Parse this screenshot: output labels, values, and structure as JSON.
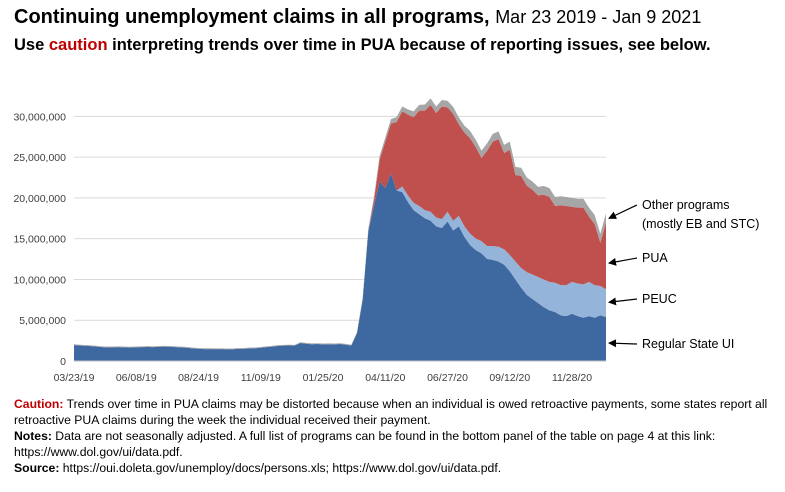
{
  "header": {
    "title": "Continuing unemployment claims in all programs,",
    "title_dates": "Mar 23 2019 - Jan 9 2021",
    "subtitle_pre": "Use ",
    "subtitle_caution": "caution",
    "subtitle_post": " interpreting trends over time in PUA because of reporting issues, see below."
  },
  "notes": {
    "caution_label": "Caution:",
    "caution_text": " Trends over time in PUA claims may be distorted because when an individual is owed retroactive payments, some states report all retroactive PUA claims during the week the individual received their payment.",
    "notes_label": "Notes:",
    "notes_text": "  Data are not seasonally adjusted. A full list of programs can be found in the bottom panel of the table on page 4 at this link: https://www.dol.gov/ui/data.pdf.",
    "source_label": "Source:",
    "source_text": "  https://oui.doleta.gov/unemploy/docs/persons.xls; https://www.dol.gov/ui/data.pdf."
  },
  "chart_data": {
    "type": "area",
    "stacked": true,
    "x_start": "2019-03-23",
    "x_step_days": 7,
    "x_count": 95,
    "x_tick_labels": [
      "03/23/19",
      "06/08/19",
      "08/24/19",
      "11/09/19",
      "01/25/20",
      "04/11/20",
      "06/27/20",
      "09/12/20",
      "11/28/20"
    ],
    "y_tick_labels": [
      "0",
      "5,000,000",
      "10,000,000",
      "15,000,000",
      "20,000,000",
      "25,000,000",
      "30,000,000"
    ],
    "ylim": [
      0,
      32000000
    ],
    "grid": true,
    "series": [
      {
        "name": "Regular State UI",
        "color": "#3d68a0",
        "values": [
          1950000,
          1900000,
          1860000,
          1820000,
          1760000,
          1700000,
          1660000,
          1680000,
          1700000,
          1660000,
          1640000,
          1680000,
          1700000,
          1720000,
          1700000,
          1740000,
          1760000,
          1740000,
          1700000,
          1660000,
          1620000,
          1540000,
          1500000,
          1460000,
          1460000,
          1450000,
          1450000,
          1440000,
          1440000,
          1480000,
          1500000,
          1540000,
          1560000,
          1620000,
          1700000,
          1760000,
          1840000,
          1880000,
          1900000,
          1880000,
          2200000,
          2120000,
          2060000,
          2080000,
          2040000,
          2060000,
          2040000,
          2080000,
          2000000,
          1900000,
          3400000,
          7500000,
          15900000,
          19000000,
          22000000,
          21200000,
          23000000,
          20900000,
          20700000,
          19500000,
          18500000,
          18000000,
          17500000,
          17200000,
          16500000,
          16300000,
          17100000,
          16000000,
          16500000,
          15200000,
          14200000,
          13600000,
          13200000,
          12500000,
          12400000,
          12200000,
          11800000,
          11000000,
          10000000,
          9000000,
          8100000,
          7600000,
          7100000,
          6600000,
          6200000,
          6000000,
          5600000,
          5500000,
          5800000,
          5500000,
          5300000,
          5500000,
          5300000,
          5600000,
          5400000
        ]
      },
      {
        "name": "PEUC",
        "color": "#94b4d9",
        "values": [
          0,
          0,
          0,
          0,
          0,
          0,
          0,
          0,
          0,
          0,
          0,
          0,
          0,
          0,
          0,
          0,
          0,
          0,
          0,
          0,
          0,
          0,
          0,
          0,
          0,
          0,
          0,
          0,
          0,
          0,
          0,
          0,
          0,
          0,
          0,
          0,
          0,
          0,
          0,
          0,
          0,
          0,
          0,
          0,
          0,
          0,
          0,
          0,
          0,
          0,
          0,
          0,
          0,
          0,
          0,
          0,
          0,
          0,
          700000,
          800000,
          900000,
          1000000,
          1000000,
          1100000,
          1100000,
          1100000,
          1200000,
          1200000,
          1300000,
          1300000,
          1400000,
          1400000,
          1500000,
          1600000,
          1700000,
          1800000,
          1900000,
          2000000,
          2200000,
          2400000,
          2800000,
          3000000,
          3200000,
          3400000,
          3500000,
          3600000,
          3700000,
          3800000,
          3900000,
          4000000,
          4100000,
          4200000,
          4000000,
          3600000,
          3400000
        ]
      },
      {
        "name": "PUA",
        "color": "#c0504d",
        "values": [
          0,
          0,
          0,
          0,
          0,
          0,
          0,
          0,
          0,
          0,
          0,
          0,
          0,
          0,
          0,
          0,
          0,
          0,
          0,
          0,
          0,
          0,
          0,
          0,
          0,
          0,
          0,
          0,
          0,
          0,
          0,
          0,
          0,
          0,
          0,
          0,
          0,
          0,
          0,
          0,
          0,
          0,
          0,
          0,
          0,
          0,
          0,
          0,
          0,
          0,
          0,
          0,
          0,
          700000,
          2700000,
          5700000,
          6100000,
          8400000,
          9200000,
          9900000,
          10500000,
          11700000,
          12200000,
          13100000,
          12800000,
          13800000,
          12800000,
          13100000,
          11200000,
          11500000,
          11700000,
          11200000,
          10200000,
          11700000,
          12800000,
          13200000,
          11800000,
          12900000,
          10600000,
          11300000,
          10600000,
          10400000,
          10000000,
          10400000,
          10400000,
          9400000,
          9800000,
          9700000,
          9200000,
          9300000,
          9400000,
          8000000,
          7500000,
          5300000,
          8200000
        ]
      },
      {
        "name": "Other programs",
        "color": "#a6a6a6",
        "values": [
          100000,
          100000,
          100000,
          100000,
          100000,
          100000,
          100000,
          100000,
          100000,
          100000,
          100000,
          100000,
          100000,
          100000,
          100000,
          100000,
          100000,
          100000,
          100000,
          100000,
          100000,
          100000,
          100000,
          100000,
          100000,
          100000,
          100000,
          100000,
          100000,
          100000,
          100000,
          100000,
          100000,
          100000,
          100000,
          100000,
          100000,
          100000,
          100000,
          100000,
          100000,
          100000,
          100000,
          100000,
          100000,
          100000,
          100000,
          100000,
          100000,
          100000,
          150000,
          250000,
          350000,
          400000,
          450000,
          500000,
          550000,
          600000,
          600000,
          650000,
          700000,
          700000,
          750000,
          800000,
          800000,
          800000,
          800000,
          850000,
          850000,
          850000,
          900000,
          900000,
          900000,
          900000,
          950000,
          950000,
          1000000,
          1000000,
          1000000,
          1000000,
          1000000,
          1000000,
          1050000,
          1050000,
          1100000,
          1100000,
          1100000,
          1100000,
          1100000,
          1100000,
          1100000,
          1100000,
          1100000,
          1100000,
          1100000
        ]
      }
    ],
    "annotations": [
      {
        "lines": [
          "Other programs",
          "(mostly EB and STC)"
        ],
        "series": "Other programs",
        "arrow_y_value": 17500000
      },
      {
        "lines": [
          "PUA"
        ],
        "series": "PUA",
        "arrow_y_value": 12000000
      },
      {
        "lines": [
          "PEUC"
        ],
        "series": "PEUC",
        "arrow_y_value": 7200000
      },
      {
        "lines": [
          "Regular State UI"
        ],
        "series": "Regular State UI",
        "arrow_y_value": 2200000
      }
    ]
  }
}
